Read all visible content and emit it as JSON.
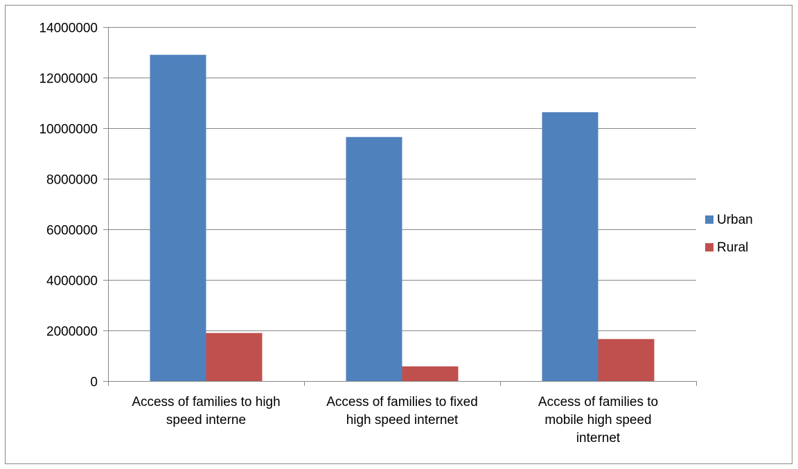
{
  "chart_data": {
    "type": "bar",
    "title": "",
    "xlabel": "",
    "ylabel": "",
    "categories": [
      [
        "Access of families to high",
        "speed interne"
      ],
      [
        "Access of families to fixed",
        "high speed internet"
      ],
      [
        "Access of families to",
        "mobile high speed",
        "internet"
      ]
    ],
    "series": [
      {
        "name": "Urban",
        "color": "#4F81BD",
        "values": [
          12900000,
          9650000,
          10630000
        ]
      },
      {
        "name": "Rural",
        "color": "#C0504D",
        "values": [
          1900000,
          580000,
          1660000
        ]
      }
    ],
    "ylim": [
      0,
      14000000
    ],
    "yticks": [
      0,
      2000000,
      4000000,
      6000000,
      8000000,
      10000000,
      12000000,
      14000000
    ],
    "grid": true,
    "legend_position": "right"
  }
}
